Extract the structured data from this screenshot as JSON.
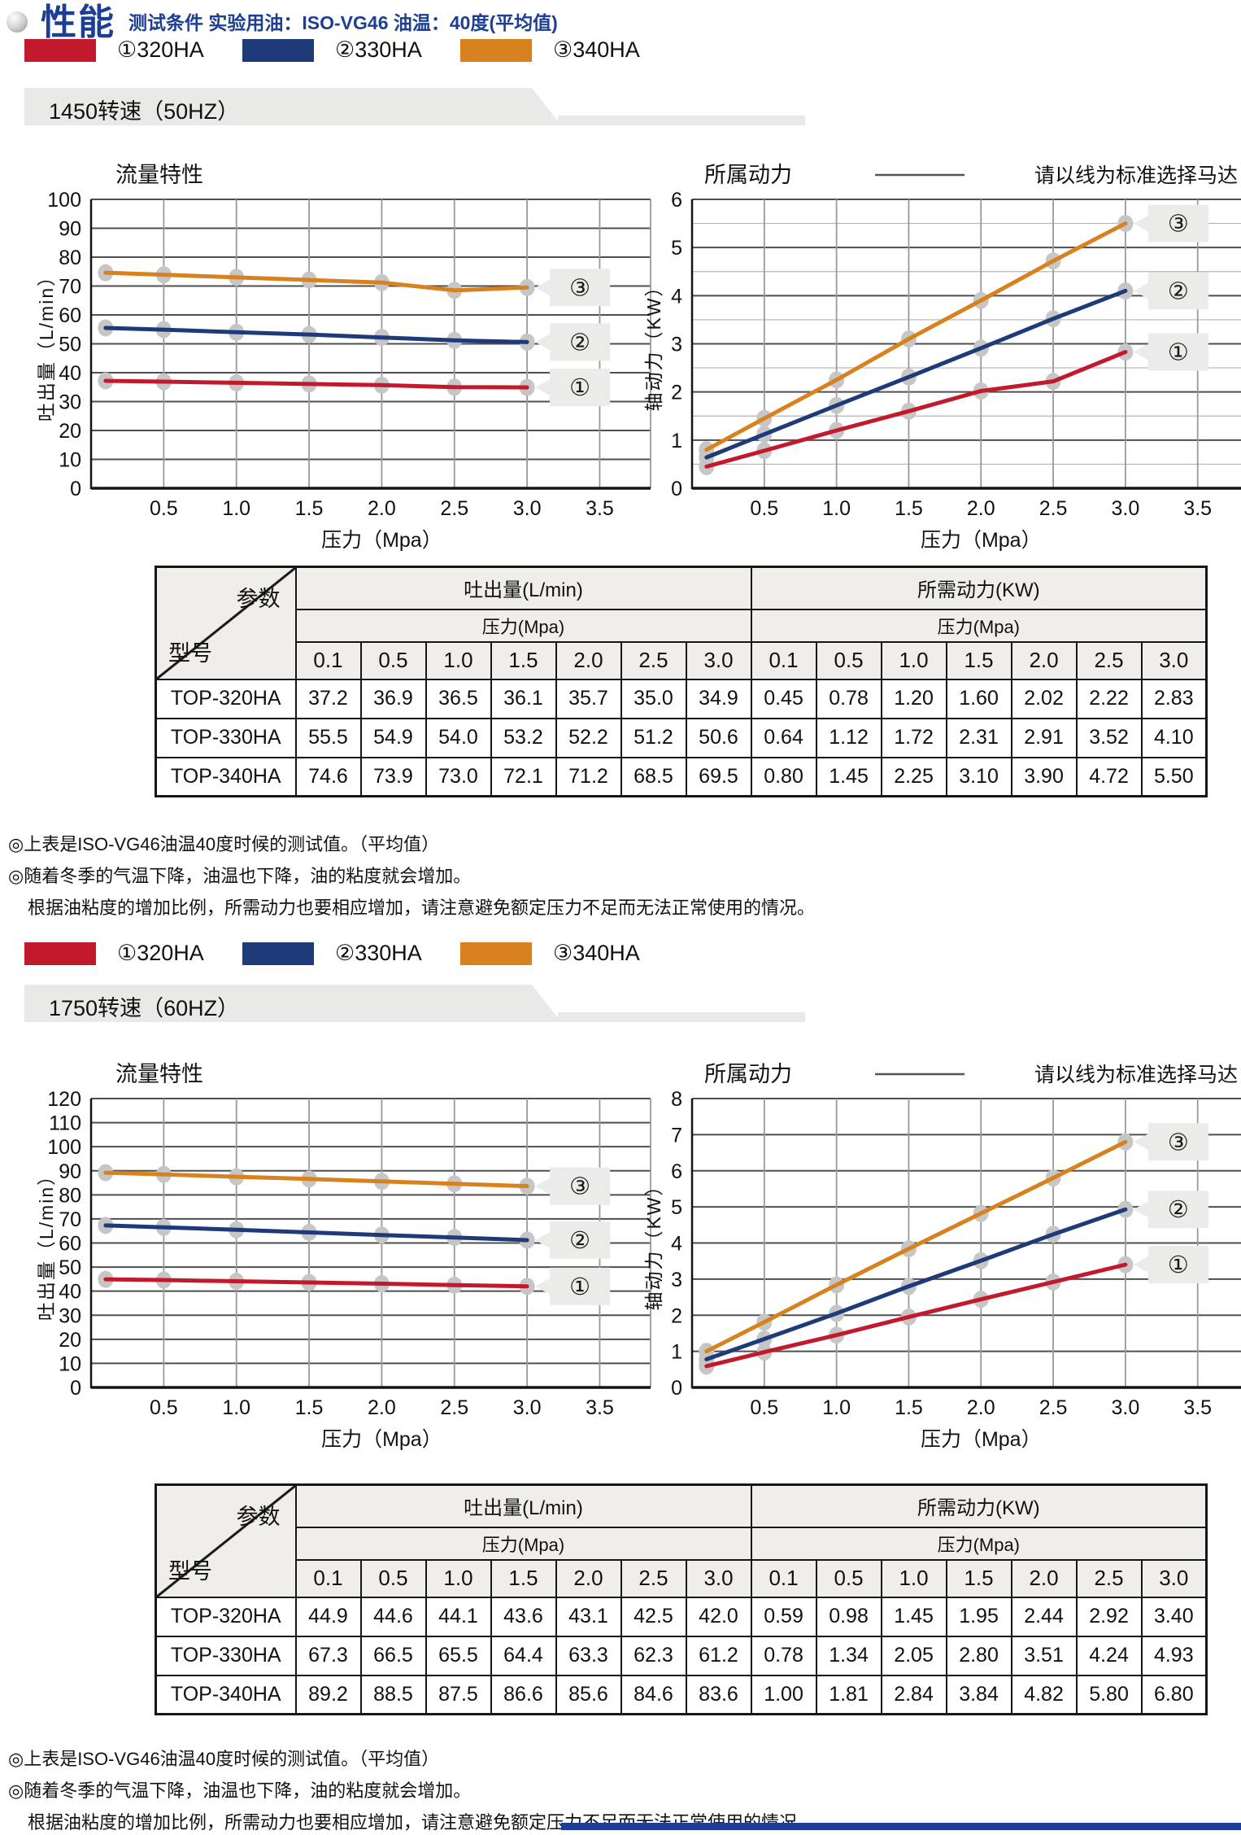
{
  "colors": {
    "red": "#c3192d",
    "navy": "#1e3a78",
    "orange": "#d8821f",
    "blue_text": "#1c3f94",
    "band_gray": "#e9e9e7",
    "grid_major": "#4f4f4f",
    "grid_minor": "#b5b5b5",
    "grid_vertical": "#9a9a9a",
    "axis_black": "#141414",
    "marker_gray": "#c6c6c6",
    "callout_bg": "#ebebe9",
    "table_header_bg": "#f0eeeb",
    "bottom_bar_blue": "#1c3f94"
  },
  "header": {
    "title": "性能",
    "subtitle": "测试条件 实验用油：ISO-VG46 油温：40度(平均值)"
  },
  "legend": [
    {
      "label": "①320HA",
      "color_key": "red"
    },
    {
      "label": "②330HA",
      "color_key": "navy"
    },
    {
      "label": "③340HA",
      "color_key": "orange"
    }
  ],
  "sections": [
    {
      "band_label": "1450转速（50HZ）"
    },
    {
      "band_label": "1750转速（60HZ）"
    }
  ],
  "notes": [
    "◎上表是ISO-VG46油温40度时候的测试值。（平均值）",
    "◎随着冬季的气温下降，油温也下降，油的粘度就会增加。",
    "根据油粘度的增加比例，所需动力也要相应增加，请注意避免额定压力不足而无法正常使用的情况。"
  ],
  "chart_data": [
    {
      "id": "flow-50hz",
      "type": "line",
      "section": "1450转速（50HZ）",
      "title": "流量特性",
      "xlabel": "压力（Mpa）",
      "ylabel": "吐出量（L/min）",
      "x": [
        0.1,
        0.5,
        1.0,
        1.5,
        2.0,
        2.5,
        3.0
      ],
      "xticks": [
        0.5,
        1.0,
        1.5,
        2.0,
        2.5,
        3.0,
        3.5
      ],
      "xlim": [
        0,
        3.85
      ],
      "ylim": [
        0,
        100
      ],
      "ytick": 10,
      "minor_ytick": null,
      "grid": true,
      "legend_position": "right-callouts",
      "series": [
        {
          "name": "①320HA",
          "callout": "①",
          "color_key": "red",
          "values": [
            37.2,
            36.9,
            36.5,
            36.1,
            35.7,
            35.0,
            34.9
          ]
        },
        {
          "name": "②330HA",
          "callout": "②",
          "color_key": "navy",
          "values": [
            55.5,
            54.9,
            54.0,
            53.2,
            52.2,
            51.2,
            50.6
          ]
        },
        {
          "name": "③340HA",
          "callout": "③",
          "color_key": "orange",
          "values": [
            74.6,
            73.9,
            73.0,
            72.1,
            71.2,
            68.5,
            69.5
          ]
        }
      ]
    },
    {
      "id": "power-50hz",
      "type": "line",
      "section": "1450转速（50HZ）",
      "title": "所属动力",
      "right_note": "请以线为标准选择马达",
      "xlabel": "压力（Mpa）",
      "ylabel": "轴动力（KW）",
      "x": [
        0.1,
        0.5,
        1.0,
        1.5,
        2.0,
        2.5,
        3.0
      ],
      "xticks": [
        0.5,
        1.0,
        1.5,
        2.0,
        2.5,
        3.0,
        3.5
      ],
      "xlim": [
        0,
        3.8
      ],
      "ylim": [
        0,
        6
      ],
      "ytick": 1,
      "minor_ytick": 0.5,
      "grid": true,
      "legend_position": "right-callouts",
      "series": [
        {
          "name": "①320HA",
          "callout": "①",
          "color_key": "red",
          "values": [
            0.45,
            0.78,
            1.2,
            1.6,
            2.02,
            2.22,
            2.83
          ]
        },
        {
          "name": "②330HA",
          "callout": "②",
          "color_key": "navy",
          "values": [
            0.64,
            1.12,
            1.72,
            2.31,
            2.91,
            3.52,
            4.1
          ]
        },
        {
          "name": "③340HA",
          "callout": "③",
          "color_key": "orange",
          "values": [
            0.8,
            1.45,
            2.25,
            3.1,
            3.9,
            4.72,
            5.5
          ]
        }
      ]
    },
    {
      "id": "flow-60hz",
      "type": "line",
      "section": "1750转速（60HZ）",
      "title": "流量特性",
      "xlabel": "压力（Mpa）",
      "ylabel": "吐出量（L/min）",
      "x": [
        0.1,
        0.5,
        1.0,
        1.5,
        2.0,
        2.5,
        3.0
      ],
      "xticks": [
        0.5,
        1.0,
        1.5,
        2.0,
        2.5,
        3.0,
        3.5
      ],
      "xlim": [
        0,
        3.85
      ],
      "ylim": [
        0,
        120
      ],
      "ytick": 10,
      "minor_ytick": null,
      "grid": true,
      "legend_position": "right-callouts",
      "series": [
        {
          "name": "①320HA",
          "callout": "①",
          "color_key": "red",
          "values": [
            44.9,
            44.6,
            44.1,
            43.6,
            43.1,
            42.5,
            42.0
          ]
        },
        {
          "name": "②330HA",
          "callout": "②",
          "color_key": "navy",
          "values": [
            67.3,
            66.5,
            65.5,
            64.4,
            63.3,
            62.3,
            61.2
          ]
        },
        {
          "name": "③340HA",
          "callout": "③",
          "color_key": "orange",
          "values": [
            89.2,
            88.5,
            87.5,
            86.6,
            85.6,
            84.6,
            83.6
          ]
        }
      ]
    },
    {
      "id": "power-60hz",
      "type": "line",
      "section": "1750转速（60HZ）",
      "title": "所属动力",
      "right_note": "请以线为标准选择马达",
      "xlabel": "压力（Mpa）",
      "ylabel": "轴动力（KW）",
      "x": [
        0.1,
        0.5,
        1.0,
        1.5,
        2.0,
        2.5,
        3.0
      ],
      "xticks": [
        0.5,
        1.0,
        1.5,
        2.0,
        2.5,
        3.0,
        3.5
      ],
      "xlim": [
        0,
        3.8
      ],
      "ylim": [
        0,
        8
      ],
      "ytick": 1,
      "minor_ytick": null,
      "grid": true,
      "legend_position": "right-callouts",
      "series": [
        {
          "name": "①320HA",
          "callout": "①",
          "color_key": "red",
          "values": [
            0.59,
            0.98,
            1.45,
            1.95,
            2.44,
            2.92,
            3.4
          ]
        },
        {
          "name": "②330HA",
          "callout": "②",
          "color_key": "navy",
          "values": [
            0.78,
            1.34,
            2.05,
            2.8,
            3.51,
            4.24,
            4.93
          ]
        },
        {
          "name": "③340HA",
          "callout": "③",
          "color_key": "orange",
          "values": [
            1.0,
            1.81,
            2.84,
            3.84,
            4.82,
            5.8,
            6.8
          ]
        }
      ]
    }
  ],
  "tables": [
    {
      "section": "1450转速（50HZ）",
      "corner_top": "参数",
      "corner_bottom": "型号",
      "group_flow": "吐出量(L/min)",
      "group_power": "所需动力(KW)",
      "pressure_label": "压力(Mpa)",
      "pressures": [
        "0.1",
        "0.5",
        "1.0",
        "1.5",
        "2.0",
        "2.5",
        "3.0"
      ],
      "rows": [
        {
          "model": "TOP-320HA",
          "flow": [
            "37.2",
            "36.9",
            "36.5",
            "36.1",
            "35.7",
            "35.0",
            "34.9"
          ],
          "power": [
            "0.45",
            "0.78",
            "1.20",
            "1.60",
            "2.02",
            "2.22",
            "2.83"
          ]
        },
        {
          "model": "TOP-330HA",
          "flow": [
            "55.5",
            "54.9",
            "54.0",
            "53.2",
            "52.2",
            "51.2",
            "50.6"
          ],
          "power": [
            "0.64",
            "1.12",
            "1.72",
            "2.31",
            "2.91",
            "3.52",
            "4.10"
          ]
        },
        {
          "model": "TOP-340HA",
          "flow": [
            "74.6",
            "73.9",
            "73.0",
            "72.1",
            "71.2",
            "68.5",
            "69.5"
          ],
          "power": [
            "0.80",
            "1.45",
            "2.25",
            "3.10",
            "3.90",
            "4.72",
            "5.50"
          ]
        }
      ]
    },
    {
      "section": "1750转速（60HZ）",
      "corner_top": "参数",
      "corner_bottom": "型号",
      "group_flow": "吐出量(L/min)",
      "group_power": "所需动力(KW)",
      "pressure_label": "压力(Mpa)",
      "pressures": [
        "0.1",
        "0.5",
        "1.0",
        "1.5",
        "2.0",
        "2.5",
        "3.0"
      ],
      "rows": [
        {
          "model": "TOP-320HA",
          "flow": [
            "44.9",
            "44.6",
            "44.1",
            "43.6",
            "43.1",
            "42.5",
            "42.0"
          ],
          "power": [
            "0.59",
            "0.98",
            "1.45",
            "1.95",
            "2.44",
            "2.92",
            "3.40"
          ]
        },
        {
          "model": "TOP-330HA",
          "flow": [
            "67.3",
            "66.5",
            "65.5",
            "64.4",
            "63.3",
            "62.3",
            "61.2"
          ],
          "power": [
            "0.78",
            "1.34",
            "2.05",
            "2.80",
            "3.51",
            "4.24",
            "4.93"
          ]
        },
        {
          "model": "TOP-340HA",
          "flow": [
            "89.2",
            "88.5",
            "87.5",
            "86.6",
            "85.6",
            "84.6",
            "83.6"
          ],
          "power": [
            "1.00",
            "1.81",
            "2.84",
            "3.84",
            "4.82",
            "5.80",
            "6.80"
          ]
        }
      ]
    }
  ]
}
